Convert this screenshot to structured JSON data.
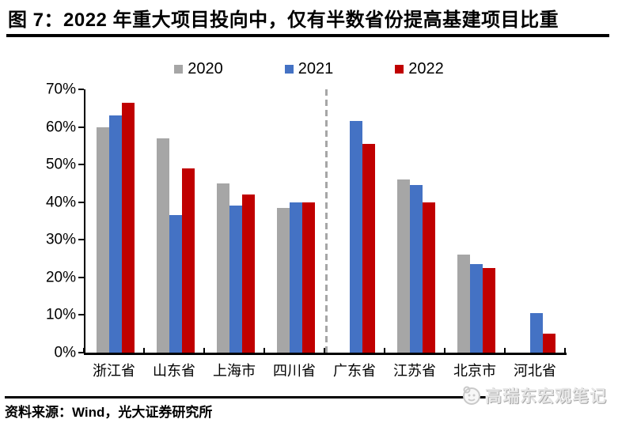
{
  "page": {
    "title": "图 7：2022 年重大项目投向中，仅有半数省份提高基建项目比重",
    "source": "资料来源：Wind，光大证券研究所",
    "watermark": "高瑞东宏观笔记"
  },
  "colors": {
    "series_2020": "#a6a6a6",
    "series_2021": "#4472c4",
    "series_2022": "#c00000",
    "axis": "#000000",
    "separator": "#a6a6a6"
  },
  "chart_data": {
    "type": "bar",
    "title": "2022 年重大项目投向中，仅有半数省份提高基建项目比重",
    "categories": [
      "浙江省",
      "山东省",
      "上海市",
      "四川省",
      "广东省",
      "江苏省",
      "北京市",
      "河北省"
    ],
    "series": [
      {
        "name": "2020",
        "color": "#a6a6a6",
        "values": [
          60,
          57,
          45,
          38.5,
          null,
          46,
          26,
          null
        ]
      },
      {
        "name": "2021",
        "color": "#4472c4",
        "values": [
          63,
          36.5,
          39,
          40,
          61.5,
          44.5,
          23.5,
          10.5
        ]
      },
      {
        "name": "2022",
        "color": "#c00000",
        "values": [
          66.5,
          49,
          42,
          40,
          55.5,
          40,
          22.5,
          5
        ]
      }
    ],
    "xlabel": "",
    "ylabel": "",
    "ylim": [
      0,
      70
    ],
    "ytick_step": 10,
    "ytick_labels": [
      "0%",
      "10%",
      "20%",
      "30%",
      "40%",
      "50%",
      "60%",
      "70%"
    ],
    "separator_after_index": 3,
    "legend_position": "top",
    "grid": false
  }
}
